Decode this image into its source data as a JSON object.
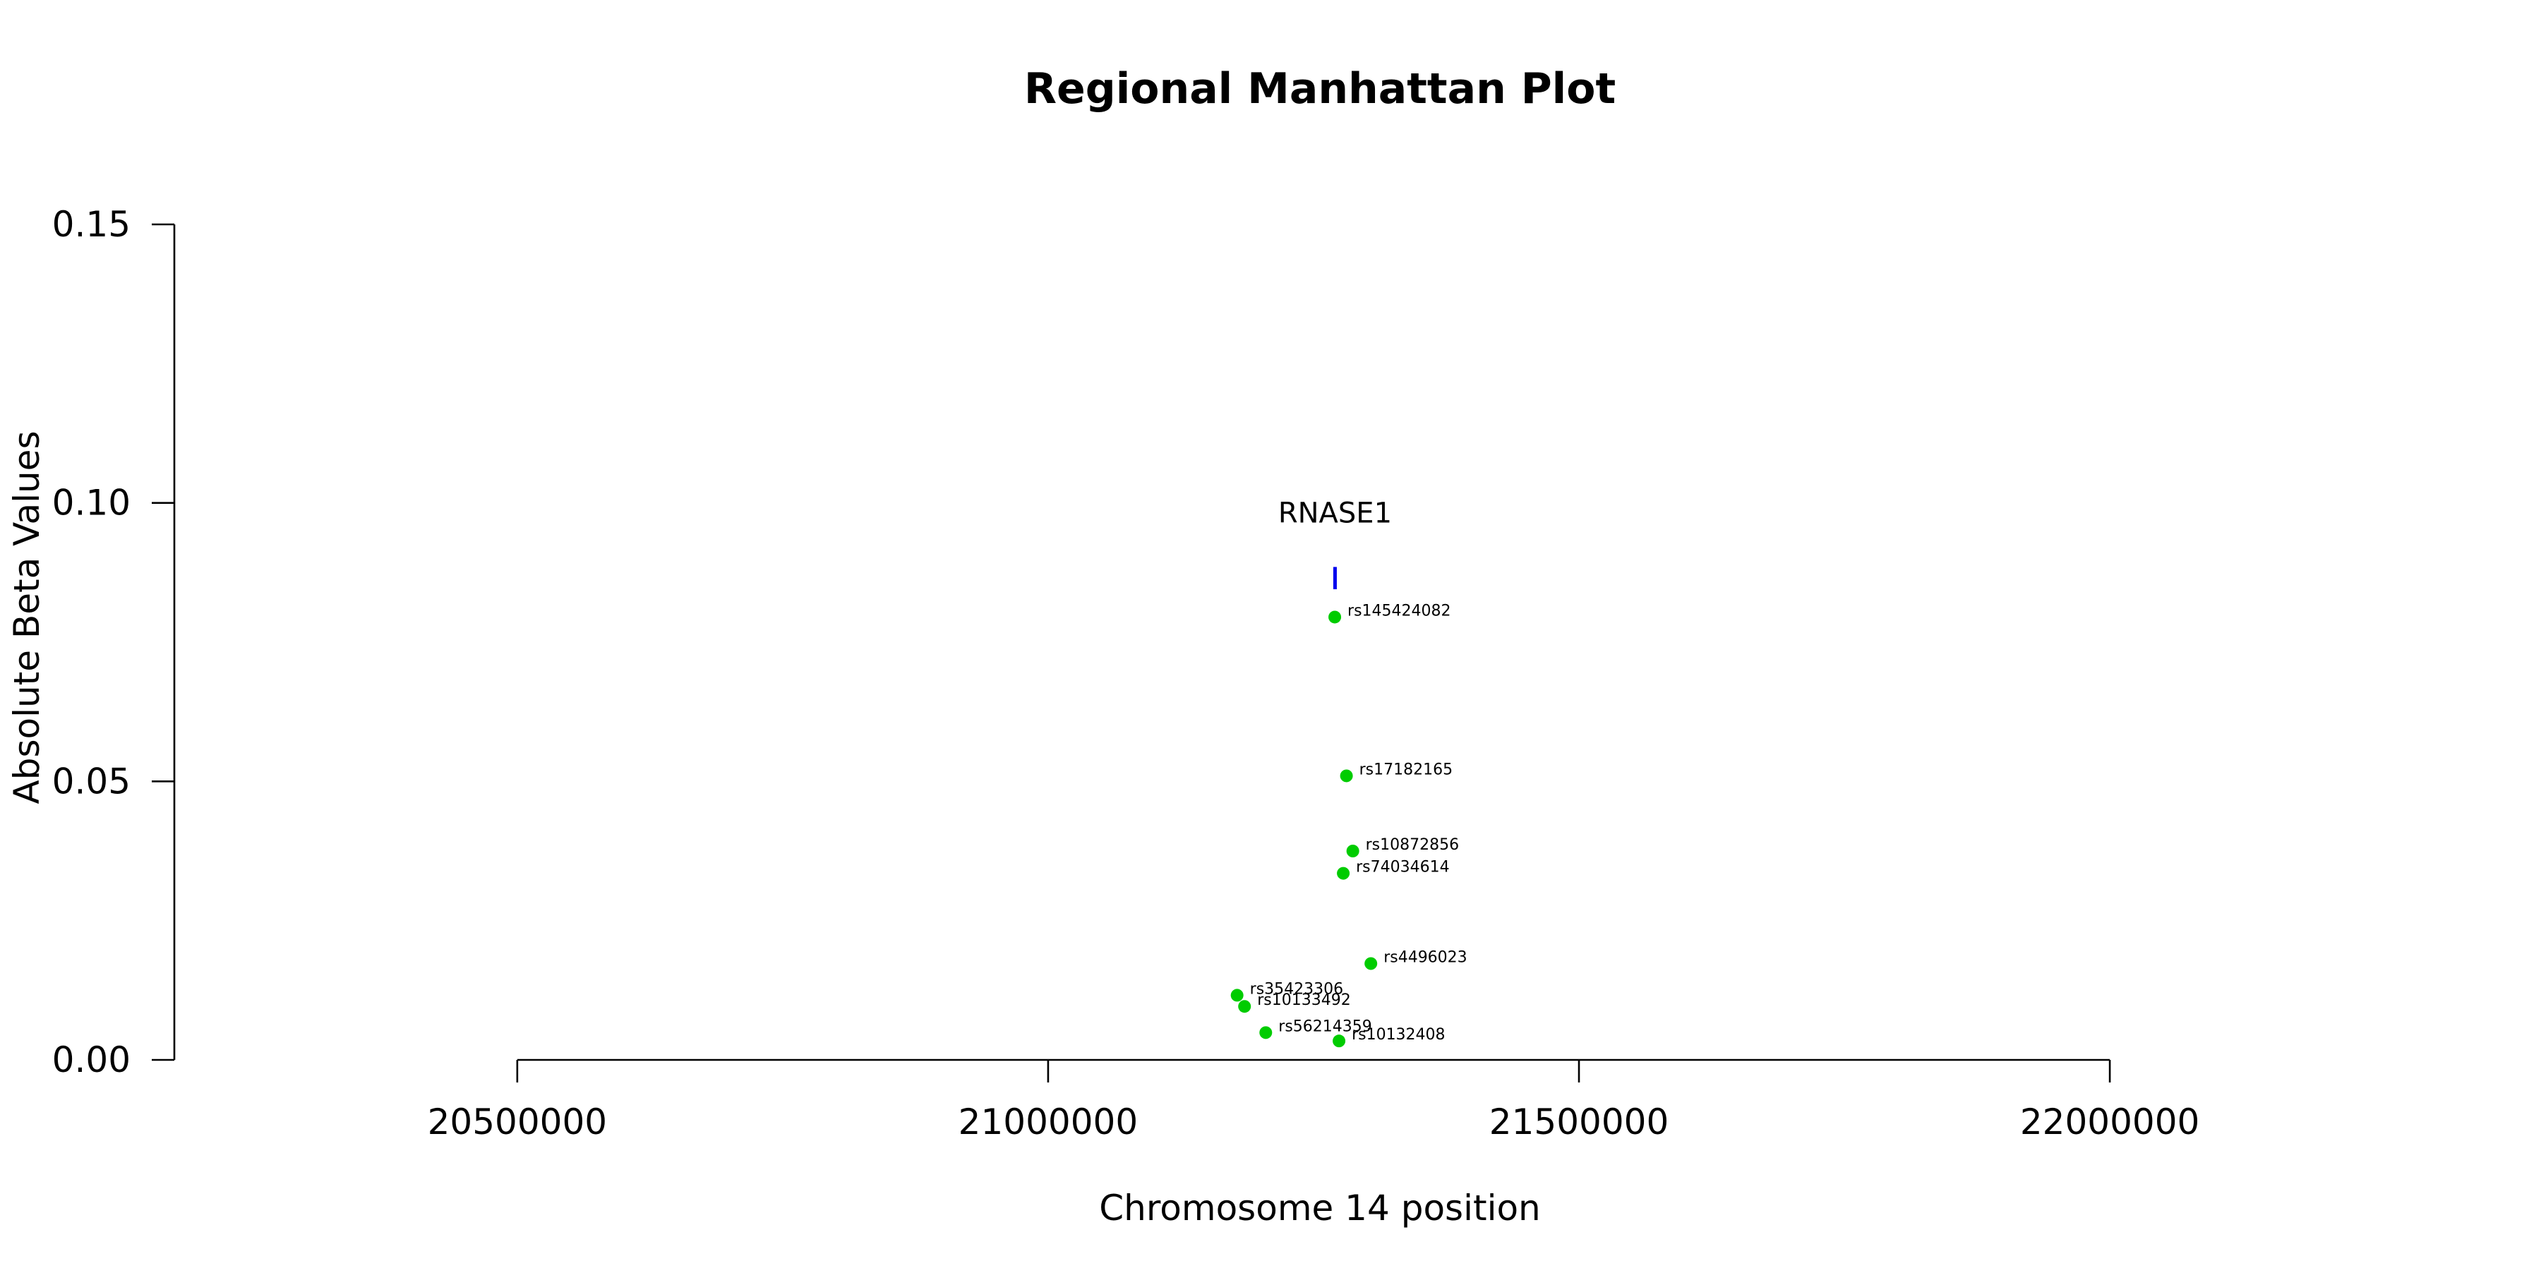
{
  "chart_data": {
    "type": "scatter",
    "title": "Regional Manhattan Plot",
    "xlabel": "Chromosome 14 position",
    "ylabel": "Absolute Beta Values",
    "xlim": [
      20177000,
      22335000
    ],
    "ylim": [
      0,
      0.15
    ],
    "xticks": [
      20500000,
      21000000,
      21500000,
      22000000
    ],
    "xtick_labels": [
      "20500000",
      "21000000",
      "21500000",
      "22000000"
    ],
    "yticks": [
      0,
      0.05,
      0.1,
      0.15
    ],
    "ytick_labels": [
      "0.00",
      "0.05",
      "0.10",
      "0.15"
    ],
    "grid": false,
    "point_color": "#00cc00",
    "gene_color": "#0000ee",
    "points": [
      {
        "label": "rs145424082",
        "x": 21270000,
        "y": 0.0795
      },
      {
        "label": "rs17182165",
        "x": 21281000,
        "y": 0.051
      },
      {
        "label": "rs10872856",
        "x": 21287000,
        "y": 0.0375
      },
      {
        "label": "rs74034614",
        "x": 21278000,
        "y": 0.0335
      },
      {
        "label": "rs4496023",
        "x": 21304000,
        "y": 0.0173
      },
      {
        "label": "rs35423306",
        "x": 21178000,
        "y": 0.0116
      },
      {
        "label": "rs10133492",
        "x": 21185000,
        "y": 0.0096
      },
      {
        "label": "rs56214359",
        "x": 21205000,
        "y": 0.0049
      },
      {
        "label": "rs10132408",
        "x": 21274000,
        "y": 0.0034
      }
    ],
    "genes": [
      {
        "name": "RNASE1",
        "start": 21269000,
        "end": 21271500,
        "y_low": 0.0845,
        "y_high": 0.0885,
        "label_y": 0.0985
      }
    ]
  }
}
